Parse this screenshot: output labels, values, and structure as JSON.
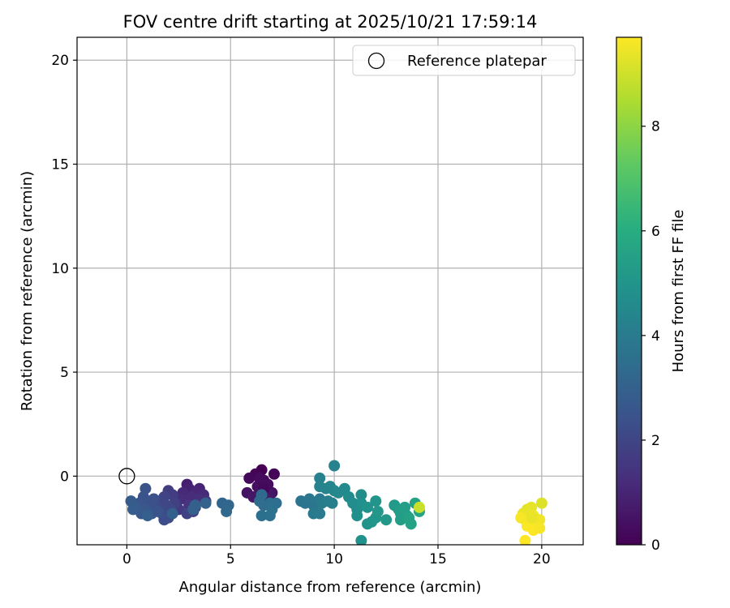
{
  "chart_data": {
    "type": "scatter",
    "title": "FOV centre drift starting at 2025/10/21 17:59:14",
    "xlabel": "Angular distance from reference (arcmin)",
    "ylabel": "Rotation from reference (arcmin)",
    "xlim": [
      -2.4,
      22.0
    ],
    "ylim": [
      -3.3,
      21.1
    ],
    "xticks": [
      0,
      5,
      10,
      15,
      20
    ],
    "yticks": [
      0,
      5,
      10,
      15,
      20
    ],
    "grid": true,
    "legend": {
      "position": "top-right",
      "entries": [
        {
          "label": "Reference platepar",
          "marker": "open-circle"
        }
      ]
    },
    "reference_point": {
      "x": 0,
      "y": 0
    },
    "colorbar": {
      "label": "Hours from first FF file",
      "colormap": "viridis",
      "min": 0,
      "max": 9.7,
      "ticks": [
        0,
        2,
        4,
        6,
        8
      ]
    },
    "points": [
      {
        "x": 6.5,
        "y": 0.3,
        "t": 0.0
      },
      {
        "x": 6.2,
        "y": 0.1,
        "t": 0.1
      },
      {
        "x": 7.1,
        "y": 0.1,
        "t": 0.15
      },
      {
        "x": 5.9,
        "y": -0.1,
        "t": 0.2
      },
      {
        "x": 6.6,
        "y": -0.2,
        "t": 0.25
      },
      {
        "x": 6.8,
        "y": -0.4,
        "t": 0.3
      },
      {
        "x": 6.3,
        "y": -0.5,
        "t": 0.35
      },
      {
        "x": 7.0,
        "y": -0.8,
        "t": 0.4
      },
      {
        "x": 5.8,
        "y": -0.8,
        "t": 0.45
      },
      {
        "x": 6.4,
        "y": -0.8,
        "t": 0.5
      },
      {
        "x": 6.9,
        "y": -0.9,
        "t": 0.55
      },
      {
        "x": 6.1,
        "y": -1.0,
        "t": 0.6
      },
      {
        "x": 6.7,
        "y": -1.1,
        "t": 0.65
      },
      {
        "x": 6.4,
        "y": -0.1,
        "t": 0.3
      },
      {
        "x": 6.6,
        "y": -0.6,
        "t": 0.2
      },
      {
        "x": 2.9,
        "y": -0.4,
        "t": 0.8
      },
      {
        "x": 3.0,
        "y": -0.6,
        "t": 0.9
      },
      {
        "x": 3.5,
        "y": -0.6,
        "t": 1.0
      },
      {
        "x": 3.3,
        "y": -0.8,
        "t": 1.05
      },
      {
        "x": 2.7,
        "y": -0.8,
        "t": 1.1
      },
      {
        "x": 3.7,
        "y": -0.9,
        "t": 1.15
      },
      {
        "x": 3.1,
        "y": -1.0,
        "t": 1.2
      },
      {
        "x": 2.6,
        "y": -1.1,
        "t": 1.25
      },
      {
        "x": 3.4,
        "y": -1.1,
        "t": 1.3
      },
      {
        "x": 3.8,
        "y": -1.2,
        "t": 1.35
      },
      {
        "x": 2.4,
        "y": -1.3,
        "t": 1.4
      },
      {
        "x": 3.0,
        "y": -1.4,
        "t": 1.45
      },
      {
        "x": 3.3,
        "y": -1.5,
        "t": 1.55
      },
      {
        "x": 2.5,
        "y": -1.6,
        "t": 1.6
      },
      {
        "x": 3.2,
        "y": -1.7,
        "t": 1.8
      },
      {
        "x": 2.9,
        "y": -1.8,
        "t": 1.9
      },
      {
        "x": 2.0,
        "y": -0.7,
        "t": 1.7
      },
      {
        "x": 2.2,
        "y": -0.9,
        "t": 1.75
      },
      {
        "x": 2.3,
        "y": -1.3,
        "t": 1.85
      },
      {
        "x": 1.8,
        "y": -1.0,
        "t": 1.95
      },
      {
        "x": 1.6,
        "y": -1.2,
        "t": 2.0
      },
      {
        "x": 1.9,
        "y": -1.4,
        "t": 2.05
      },
      {
        "x": 2.1,
        "y": -1.6,
        "t": 2.1
      },
      {
        "x": 1.7,
        "y": -1.8,
        "t": 2.15
      },
      {
        "x": 2.0,
        "y": -2.0,
        "t": 2.2
      },
      {
        "x": 1.8,
        "y": -2.1,
        "t": 2.25
      },
      {
        "x": 1.4,
        "y": -1.5,
        "t": 2.3
      },
      {
        "x": 1.3,
        "y": -1.1,
        "t": 2.35
      },
      {
        "x": 1.1,
        "y": -1.3,
        "t": 2.4
      },
      {
        "x": 0.9,
        "y": -0.6,
        "t": 2.45
      },
      {
        "x": 0.8,
        "y": -1.0,
        "t": 2.5
      },
      {
        "x": 0.6,
        "y": -1.3,
        "t": 2.55
      },
      {
        "x": 0.9,
        "y": -1.6,
        "t": 2.6
      },
      {
        "x": 1.2,
        "y": -1.8,
        "t": 2.65
      },
      {
        "x": 0.7,
        "y": -1.8,
        "t": 2.7
      },
      {
        "x": 0.4,
        "y": -1.5,
        "t": 2.75
      },
      {
        "x": 0.2,
        "y": -1.2,
        "t": 2.8
      },
      {
        "x": 0.3,
        "y": -1.6,
        "t": 2.85
      },
      {
        "x": 1.0,
        "y": -1.9,
        "t": 2.9
      },
      {
        "x": 1.5,
        "y": -1.7,
        "t": 2.5
      },
      {
        "x": 2.2,
        "y": -1.8,
        "t": 2.95
      },
      {
        "x": 3.3,
        "y": -1.4,
        "t": 2.95
      },
      {
        "x": 3.2,
        "y": -1.6,
        "t": 3.0
      },
      {
        "x": 3.8,
        "y": -1.3,
        "t": 3.05
      },
      {
        "x": 4.6,
        "y": -1.3,
        "t": 3.15
      },
      {
        "x": 4.9,
        "y": -1.4,
        "t": 3.2
      },
      {
        "x": 4.8,
        "y": -1.7,
        "t": 3.25
      },
      {
        "x": 6.5,
        "y": -0.9,
        "t": 3.3
      },
      {
        "x": 6.4,
        "y": -1.2,
        "t": 3.35
      },
      {
        "x": 6.6,
        "y": -1.4,
        "t": 3.4
      },
      {
        "x": 6.9,
        "y": -1.3,
        "t": 3.45
      },
      {
        "x": 7.2,
        "y": -1.3,
        "t": 3.5
      },
      {
        "x": 6.5,
        "y": -1.9,
        "t": 3.55
      },
      {
        "x": 6.9,
        "y": -1.9,
        "t": 3.6
      },
      {
        "x": 7.0,
        "y": -1.6,
        "t": 3.6
      },
      {
        "x": 8.4,
        "y": -1.2,
        "t": 3.7
      },
      {
        "x": 8.6,
        "y": -1.3,
        "t": 3.75
      },
      {
        "x": 9.0,
        "y": -1.4,
        "t": 3.8
      },
      {
        "x": 8.8,
        "y": -1.1,
        "t": 3.85
      },
      {
        "x": 9.3,
        "y": -1.1,
        "t": 3.9
      },
      {
        "x": 9.0,
        "y": -1.8,
        "t": 3.95
      },
      {
        "x": 9.3,
        "y": -1.8,
        "t": 4.0
      },
      {
        "x": 9.4,
        "y": -1.3,
        "t": 4.05
      },
      {
        "x": 9.7,
        "y": -1.2,
        "t": 4.1
      },
      {
        "x": 9.9,
        "y": -1.3,
        "t": 4.15
      },
      {
        "x": 9.3,
        "y": -0.1,
        "t": 4.2
      },
      {
        "x": 10.0,
        "y": 0.5,
        "t": 4.25
      },
      {
        "x": 9.3,
        "y": -0.5,
        "t": 4.3
      },
      {
        "x": 9.6,
        "y": -0.6,
        "t": 4.35
      },
      {
        "x": 9.8,
        "y": -0.5,
        "t": 4.4
      },
      {
        "x": 10.0,
        "y": -0.7,
        "t": 4.45
      },
      {
        "x": 10.2,
        "y": -0.8,
        "t": 4.5
      },
      {
        "x": 10.5,
        "y": -0.6,
        "t": 4.55
      },
      {
        "x": 10.7,
        "y": -1.0,
        "t": 4.6
      },
      {
        "x": 10.9,
        "y": -1.3,
        "t": 4.65
      },
      {
        "x": 11.1,
        "y": -1.6,
        "t": 4.7
      },
      {
        "x": 11.3,
        "y": -0.9,
        "t": 4.75
      },
      {
        "x": 11.3,
        "y": -1.3,
        "t": 4.8
      },
      {
        "x": 11.1,
        "y": -1.9,
        "t": 4.8
      },
      {
        "x": 11.3,
        "y": -3.1,
        "t": 4.85
      },
      {
        "x": 11.6,
        "y": -1.5,
        "t": 4.9
      },
      {
        "x": 11.6,
        "y": -2.3,
        "t": 4.95
      },
      {
        "x": 11.8,
        "y": -2.2,
        "t": 5.0
      },
      {
        "x": 12.0,
        "y": -1.2,
        "t": 5.0
      },
      {
        "x": 12.0,
        "y": -2.0,
        "t": 5.05
      },
      {
        "x": 12.1,
        "y": -1.7,
        "t": 5.1
      },
      {
        "x": 12.5,
        "y": -2.1,
        "t": 5.15
      },
      {
        "x": 12.9,
        "y": -1.4,
        "t": 5.2
      },
      {
        "x": 13.1,
        "y": -1.6,
        "t": 5.25
      },
      {
        "x": 13.2,
        "y": -1.8,
        "t": 5.3
      },
      {
        "x": 13.2,
        "y": -2.1,
        "t": 5.35
      },
      {
        "x": 13.4,
        "y": -1.5,
        "t": 5.4
      },
      {
        "x": 13.5,
        "y": -1.9,
        "t": 5.45
      },
      {
        "x": 13.6,
        "y": -2.0,
        "t": 5.5
      },
      {
        "x": 13.7,
        "y": -2.3,
        "t": 5.55
      },
      {
        "x": 13.9,
        "y": -1.3,
        "t": 5.6
      },
      {
        "x": 14.1,
        "y": -1.7,
        "t": 5.65
      },
      {
        "x": 14.1,
        "y": -1.5,
        "t": 8.9
      },
      {
        "x": 19.3,
        "y": -1.6,
        "t": 9.3
      },
      {
        "x": 19.5,
        "y": -1.5,
        "t": 9.35
      },
      {
        "x": 19.1,
        "y": -1.8,
        "t": 9.4
      },
      {
        "x": 19.6,
        "y": -1.9,
        "t": 9.45
      },
      {
        "x": 19.2,
        "y": -2.1,
        "t": 9.5
      },
      {
        "x": 19.4,
        "y": -2.2,
        "t": 9.55
      },
      {
        "x": 19.7,
        "y": -2.3,
        "t": 9.6
      },
      {
        "x": 19.3,
        "y": -2.4,
        "t": 9.65
      },
      {
        "x": 19.6,
        "y": -2.6,
        "t": 9.7
      },
      {
        "x": 19.9,
        "y": -2.1,
        "t": 9.5
      },
      {
        "x": 20.0,
        "y": -1.3,
        "t": 9.2
      },
      {
        "x": 19.9,
        "y": -2.5,
        "t": 9.6
      },
      {
        "x": 19.2,
        "y": -3.1,
        "t": 9.7
      },
      {
        "x": 19.5,
        "y": -2.0,
        "t": 9.4
      },
      {
        "x": 19.0,
        "y": -2.0,
        "t": 9.6
      }
    ]
  }
}
